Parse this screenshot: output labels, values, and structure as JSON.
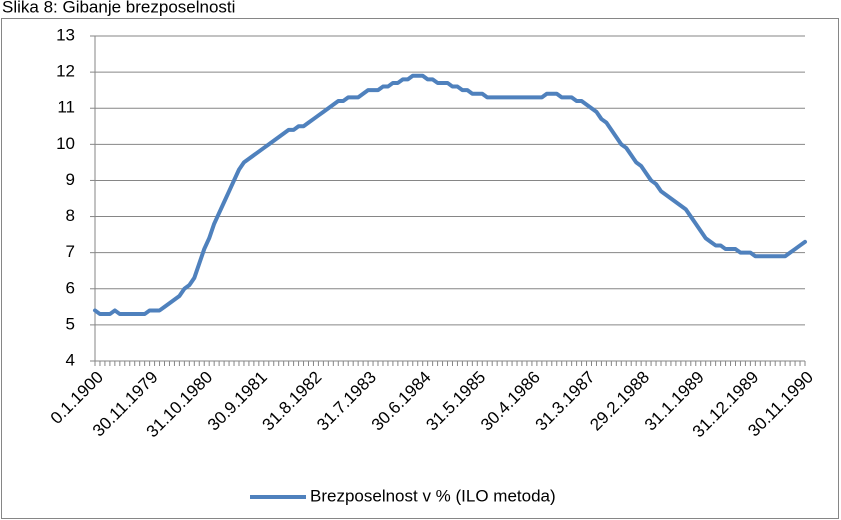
{
  "chart_data": {
    "type": "line",
    "title": "Slika 8: Gibanje brezposelnosti",
    "categories": [
      "0.1.1900",
      null,
      null,
      null,
      null,
      null,
      null,
      null,
      null,
      null,
      null,
      "30.11.1979",
      null,
      null,
      null,
      null,
      null,
      null,
      null,
      null,
      null,
      null,
      "31.10.1980",
      null,
      null,
      null,
      null,
      null,
      null,
      null,
      null,
      null,
      null,
      "30.9.1981",
      null,
      null,
      null,
      null,
      null,
      null,
      null,
      null,
      null,
      null,
      "31.8.1982",
      null,
      null,
      null,
      null,
      null,
      null,
      null,
      null,
      null,
      null,
      "31.7.1983",
      null,
      null,
      null,
      null,
      null,
      null,
      null,
      null,
      null,
      null,
      "30.6.1984",
      null,
      null,
      null,
      null,
      null,
      null,
      null,
      null,
      null,
      null,
      "31.5.1985",
      null,
      null,
      null,
      null,
      null,
      null,
      null,
      null,
      null,
      null,
      "30.4.1986",
      null,
      null,
      null,
      null,
      null,
      null,
      null,
      null,
      null,
      null,
      "31.3.1987",
      null,
      null,
      null,
      null,
      null,
      null,
      null,
      null,
      null,
      null,
      "29.2.1988",
      null,
      null,
      null,
      null,
      null,
      null,
      null,
      null,
      null,
      null,
      "31.1.1989",
      null,
      null,
      null,
      null,
      null,
      null,
      null,
      null,
      null,
      null,
      "31.12.1989",
      null,
      null,
      null,
      null,
      null,
      null,
      null,
      null,
      null,
      null,
      "30.11.1990"
    ],
    "series": [
      {
        "name": "Brezposelnost v % (ILO metoda)",
        "color": "#4f81bd",
        "values": [
          5.4,
          5.3,
          5.3,
          5.3,
          5.4,
          5.3,
          5.3,
          5.3,
          5.3,
          5.3,
          5.3,
          5.4,
          5.4,
          5.4,
          5.5,
          5.6,
          5.7,
          5.8,
          6.0,
          6.1,
          6.3,
          6.7,
          7.1,
          7.4,
          7.8,
          8.1,
          8.4,
          8.7,
          9.0,
          9.3,
          9.5,
          9.6,
          9.7,
          9.8,
          9.9,
          10.0,
          10.1,
          10.2,
          10.3,
          10.4,
          10.4,
          10.5,
          10.5,
          10.6,
          10.7,
          10.8,
          10.9,
          11.0,
          11.1,
          11.2,
          11.2,
          11.3,
          11.3,
          11.3,
          11.4,
          11.5,
          11.5,
          11.5,
          11.6,
          11.6,
          11.7,
          11.7,
          11.8,
          11.8,
          11.9,
          11.9,
          11.9,
          11.8,
          11.8,
          11.7,
          11.7,
          11.7,
          11.6,
          11.6,
          11.5,
          11.5,
          11.4,
          11.4,
          11.4,
          11.3,
          11.3,
          11.3,
          11.3,
          11.3,
          11.3,
          11.3,
          11.3,
          11.3,
          11.3,
          11.3,
          11.3,
          11.4,
          11.4,
          11.4,
          11.3,
          11.3,
          11.3,
          11.2,
          11.2,
          11.1,
          11.0,
          10.9,
          10.7,
          10.6,
          10.4,
          10.2,
          10.0,
          9.9,
          9.7,
          9.5,
          9.4,
          9.2,
          9.0,
          8.9,
          8.7,
          8.6,
          8.5,
          8.4,
          8.3,
          8.2,
          8.0,
          7.8,
          7.6,
          7.4,
          7.3,
          7.2,
          7.2,
          7.1,
          7.1,
          7.1,
          7.0,
          7.0,
          7.0,
          6.9,
          6.9,
          6.9,
          6.9,
          6.9,
          6.9,
          6.9,
          7.0,
          7.1,
          7.2,
          7.3
        ]
      }
    ],
    "ylim": [
      4,
      13
    ],
    "yticks": [
      4,
      5,
      6,
      7,
      8,
      9,
      10,
      11,
      12,
      13
    ],
    "grid": true,
    "legend": "bottom"
  }
}
